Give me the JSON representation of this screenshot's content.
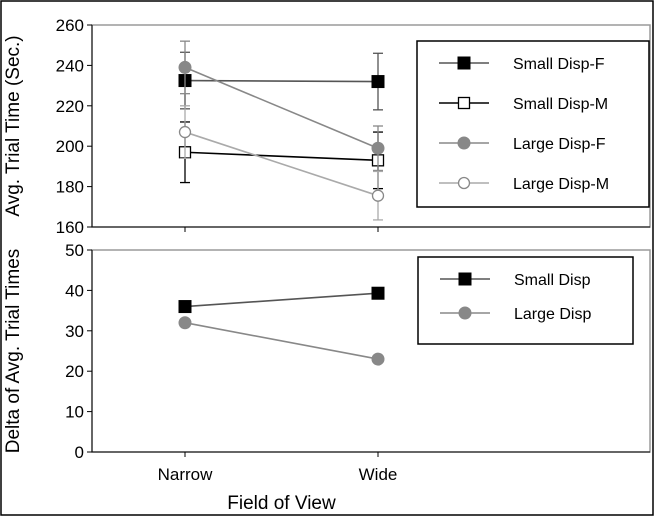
{
  "chart_data": [
    {
      "type": "line",
      "categories": [
        "Narrow",
        "Wide"
      ],
      "ylabel": "Avg. Trial Time (Sec.)",
      "xlabel": "",
      "ylim": [
        160,
        260
      ],
      "yticks": [
        160,
        180,
        200,
        220,
        240,
        260
      ],
      "show_x_tick_labels": false,
      "legend_position": "right",
      "series": [
        {
          "name": "Small Disp-F",
          "values": [
            232.5,
            232
          ],
          "error": [
            [
              14,
              14
            ],
            [
              14,
              14
            ]
          ],
          "color": "#555555",
          "marker": "square-filled",
          "marker_color": "#000000"
        },
        {
          "name": "Small Disp-M",
          "values": [
            197,
            193
          ],
          "error": [
            [
              15,
              15
            ],
            [
              14,
              14
            ]
          ],
          "color": "#000000",
          "marker": "square-open",
          "marker_color": "#000000"
        },
        {
          "name": "Large Disp-F",
          "values": [
            239,
            199
          ],
          "error": [
            [
              13,
              13
            ],
            [
              11,
              11
            ]
          ],
          "color": "#888888",
          "marker": "circle-filled",
          "marker_color": "#888888"
        },
        {
          "name": "Large Disp-M",
          "values": [
            207,
            175.5
          ],
          "error": [
            [
              13,
              13
            ],
            [
              12,
              12
            ]
          ],
          "color": "#aaaaaa",
          "marker": "circle-open",
          "marker_color": "#888888"
        }
      ]
    },
    {
      "type": "line",
      "categories": [
        "Narrow",
        "Wide"
      ],
      "ylabel": "Delta of Avg. Trial Times",
      "xlabel": "Field of View",
      "ylim": [
        0,
        50
      ],
      "yticks": [
        0,
        10,
        20,
        30,
        40,
        50
      ],
      "show_x_tick_labels": true,
      "legend_position": "top-right",
      "series": [
        {
          "name": "Small Disp",
          "values": [
            36,
            39.3
          ],
          "color": "#555555",
          "marker": "square-filled",
          "marker_color": "#000000"
        },
        {
          "name": "Large Disp",
          "values": [
            32,
            23
          ],
          "color": "#888888",
          "marker": "circle-filled",
          "marker_color": "#888888"
        }
      ]
    }
  ]
}
